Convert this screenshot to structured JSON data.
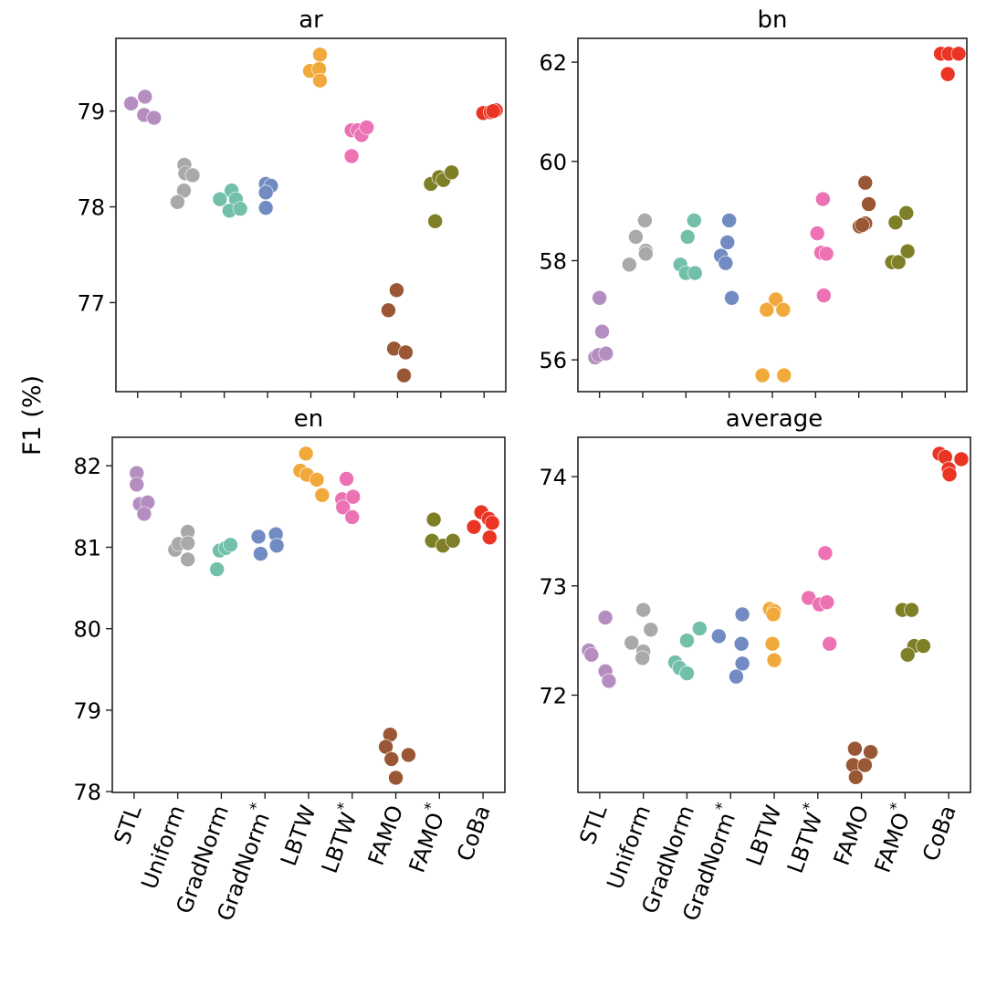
{
  "chart_data": {
    "type": "scatter",
    "subtype": "strip",
    "ylabel": "F1 (%)",
    "categories": [
      "STL",
      "Uniform",
      "GradNorm",
      "GradNorm*",
      "LBTW",
      "LBTW*",
      "FAMO",
      "FAMO*",
      "CoBa"
    ],
    "category_labels": [
      {
        "text": "STL",
        "sup": ""
      },
      {
        "text": "Uniform",
        "sup": ""
      },
      {
        "text": "GradNorm",
        "sup": ""
      },
      {
        "text": "GradNorm",
        "sup": "*"
      },
      {
        "text": "LBTW",
        "sup": ""
      },
      {
        "text": "LBTW",
        "sup": "*"
      },
      {
        "text": "FAMO",
        "sup": ""
      },
      {
        "text": "FAMO",
        "sup": "*"
      },
      {
        "text": "CoBa",
        "sup": ""
      }
    ],
    "colors": [
      "#b48ec0",
      "#a9a9a9",
      "#72bfaa",
      "#728bc2",
      "#f2a93b",
      "#ec72b3",
      "#9a5736",
      "#7f7f28",
      "#ea3424"
    ],
    "grid": false,
    "panels": [
      {
        "title": "ar",
        "ylim": [
          76.07,
          79.76
        ],
        "yticks": [
          77,
          78,
          79
        ],
        "show_xticklabels": false,
        "series": [
          {
            "name": "STL",
            "values": [
              79.08,
              79.15,
              78.96,
              78.93
            ],
            "jitter": [
              -0.15,
              0.17,
              0.15,
              0.38
            ]
          },
          {
            "name": "Uniform",
            "values": [
              78.44,
              78.35,
              78.33,
              78.17,
              78.05
            ],
            "jitter": [
              0.08,
              0.1,
              0.27,
              0.07,
              -0.08
            ]
          },
          {
            "name": "GradNorm",
            "values": [
              78.08,
              78.17,
              78.08,
              77.96,
              77.98
            ],
            "jitter": [
              -0.1,
              0.17,
              0.27,
              0.12,
              0.37
            ]
          },
          {
            "name": "GradNorm*",
            "values": [
              78.24,
              78.22,
              78.15,
              77.99
            ],
            "jitter": [
              -0.04,
              0.08,
              -0.04,
              -0.04
            ]
          },
          {
            "name": "LBTW",
            "values": [
              79.59,
              79.42,
              79.44,
              79.32
            ],
            "jitter": [
              0.21,
              -0.02,
              0.19,
              0.21
            ]
          },
          {
            "name": "LBTW*",
            "values": [
              78.8,
              78.8,
              78.75,
              78.83,
              78.53
            ],
            "jitter": [
              -0.06,
              0.08,
              0.17,
              0.29,
              -0.06
            ]
          },
          {
            "name": "FAMO",
            "values": [
              77.13,
              76.92,
              76.52,
              76.48,
              76.24
            ],
            "jitter": [
              -0.02,
              -0.21,
              -0.08,
              0.19,
              0.15
            ]
          },
          {
            "name": "FAMO*",
            "values": [
              78.24,
              78.31,
              78.28,
              78.36,
              77.85
            ],
            "jitter": [
              -0.23,
              -0.04,
              0.06,
              0.25,
              -0.13
            ]
          },
          {
            "name": "CoBa",
            "values": [
              78.98,
              78.99,
              79.01,
              79.0
            ],
            "jitter": [
              -0.02,
              0.15,
              0.27,
              0.21
            ]
          }
        ]
      },
      {
        "title": "bn",
        "ylim": [
          55.36,
          62.48
        ],
        "yticks": [
          56,
          58,
          60,
          62
        ],
        "show_xticklabels": false,
        "series": [
          {
            "name": "STL",
            "values": [
              57.25,
              56.57,
              56.05,
              56.1,
              56.13
            ],
            "jitter": [
              0.0,
              0.06,
              -0.1,
              -0.02,
              0.15
            ]
          },
          {
            "name": "Uniform",
            "values": [
              57.92,
              58.48,
              58.81,
              58.2,
              58.14
            ],
            "jitter": [
              -0.31,
              -0.16,
              0.05,
              0.07,
              0.07
            ]
          },
          {
            "name": "GradNorm",
            "values": [
              57.92,
              57.75,
              57.75,
              58.48,
              58.81
            ],
            "jitter": [
              -0.13,
              0.0,
              0.21,
              0.04,
              0.19
            ]
          },
          {
            "name": "GradNorm*",
            "values": [
              58.81,
              58.37,
              58.1,
              57.95,
              57.25
            ],
            "jitter": [
              0.0,
              -0.04,
              -0.19,
              -0.08,
              0.06
            ]
          },
          {
            "name": "LBTW",
            "values": [
              57.22,
              57.01,
              57.01,
              55.69,
              55.69
            ],
            "jitter": [
              0.08,
              -0.13,
              0.25,
              -0.23,
              0.27
            ]
          },
          {
            "name": "LBTW*",
            "values": [
              59.24,
              58.55,
              58.16,
              58.14,
              57.3
            ],
            "jitter": [
              0.17,
              0.04,
              0.13,
              0.25,
              0.19
            ]
          },
          {
            "name": "FAMO",
            "values": [
              59.57,
              59.14,
              58.69,
              58.75,
              58.72
            ],
            "jitter": [
              0.15,
              0.23,
              0.02,
              0.15,
              0.08
            ]
          },
          {
            "name": "FAMO*",
            "values": [
              58.77,
              58.96,
              57.97,
              57.97,
              58.19
            ],
            "jitter": [
              -0.15,
              0.1,
              -0.23,
              -0.08,
              0.13
            ]
          },
          {
            "name": "CoBa",
            "values": [
              62.17,
              62.17,
              62.17,
              61.76
            ],
            "jitter": [
              -0.1,
              0.08,
              0.31,
              0.06
            ]
          }
        ]
      },
      {
        "title": "en",
        "ylim": [
          77.99,
          82.35
        ],
        "yticks": [
          78,
          79,
          80,
          81,
          82
        ],
        "show_xticklabels": true,
        "series": [
          {
            "name": "STL",
            "values": [
              81.91,
              81.77,
              81.53,
              81.55,
              81.41
            ],
            "jitter": [
              0.06,
              0.06,
              0.13,
              0.31,
              0.23
            ]
          },
          {
            "name": "Uniform",
            "values": [
              80.97,
              81.04,
              81.19,
              81.05,
              80.85
            ],
            "jitter": [
              -0.06,
              0.02,
              0.23,
              0.23,
              0.23
            ]
          },
          {
            "name": "GradNorm",
            "values": [
              80.73,
              80.96,
              80.99,
              81.03
            ],
            "jitter": [
              -0.1,
              -0.04,
              0.1,
              0.21
            ]
          },
          {
            "name": "GradNorm*",
            "values": [
              81.13,
              80.92,
              81.16,
              81.02
            ],
            "jitter": [
              -0.15,
              -0.1,
              0.25,
              0.27
            ]
          },
          {
            "name": "LBTW",
            "values": [
              82.15,
              81.94,
              81.89,
              81.83,
              81.64
            ],
            "jitter": [
              -0.06,
              -0.19,
              -0.04,
              0.19,
              0.31
            ]
          },
          {
            "name": "LBTW*",
            "values": [
              81.84,
              81.59,
              81.62,
              81.49,
              81.37
            ],
            "jitter": [
              -0.13,
              -0.23,
              0.02,
              -0.21,
              0.0
            ]
          },
          {
            "name": "FAMO",
            "values": [
              78.7,
              78.55,
              78.4,
              78.45,
              78.17
            ],
            "jitter": [
              -0.13,
              -0.23,
              -0.1,
              0.29,
              0.0
            ]
          },
          {
            "name": "FAMO*",
            "values": [
              81.34,
              81.08,
              81.02,
              81.08
            ],
            "jitter": [
              -0.13,
              -0.17,
              0.08,
              0.31
            ]
          },
          {
            "name": "CoBa",
            "values": [
              81.43,
              81.25,
              81.35,
              81.3,
              81.12
            ],
            "jitter": [
              -0.04,
              -0.21,
              0.13,
              0.21,
              0.15
            ]
          }
        ]
      },
      {
        "title": "average",
        "ylim": [
          71.11,
          74.36
        ],
        "yticks": [
          72,
          73,
          74
        ],
        "show_xticklabels": true,
        "series": [
          {
            "name": "STL",
            "values": [
              72.41,
              72.37,
              72.71,
              72.22,
              72.13
            ],
            "jitter": [
              -0.25,
              -0.19,
              0.13,
              0.13,
              0.21
            ]
          },
          {
            "name": "Uniform",
            "values": [
              72.48,
              72.78,
              72.6,
              72.4,
              72.34
            ],
            "jitter": [
              -0.27,
              0.0,
              0.17,
              0.0,
              -0.02
            ]
          },
          {
            "name": "GradNorm",
            "values": [
              72.3,
              72.25,
              72.2,
              72.5,
              72.61
            ],
            "jitter": [
              -0.27,
              -0.17,
              0.0,
              0.0,
              0.29
            ]
          },
          {
            "name": "GradNorm*",
            "values": [
              72.54,
              72.74,
              72.47,
              72.29,
              72.17
            ],
            "jitter": [
              -0.27,
              0.27,
              0.25,
              0.27,
              0.13
            ]
          },
          {
            "name": "LBTW",
            "values": [
              72.79,
              72.77,
              72.74,
              72.47,
              72.32
            ],
            "jitter": [
              -0.1,
              0.0,
              -0.02,
              -0.04,
              0.0
            ]
          },
          {
            "name": "LBTW*",
            "values": [
              73.3,
              72.89,
              72.83,
              72.85,
              72.47
            ],
            "jitter": [
              0.17,
              -0.21,
              0.04,
              0.21,
              0.27
            ]
          },
          {
            "name": "FAMO",
            "values": [
              71.51,
              71.48,
              71.36,
              71.36,
              71.25
            ],
            "jitter": [
              -0.15,
              0.21,
              -0.19,
              0.08,
              -0.13
            ]
          },
          {
            "name": "FAMO*",
            "values": [
              72.78,
              72.78,
              72.45,
              72.45,
              72.37
            ],
            "jitter": [
              -0.06,
              0.15,
              0.21,
              0.42,
              0.06
            ]
          },
          {
            "name": "CoBa",
            "values": [
              74.21,
              74.18,
              74.16,
              74.07,
              74.02
            ],
            "jitter": [
              -0.21,
              -0.08,
              0.29,
              0.0,
              0.02
            ]
          }
        ]
      }
    ]
  }
}
